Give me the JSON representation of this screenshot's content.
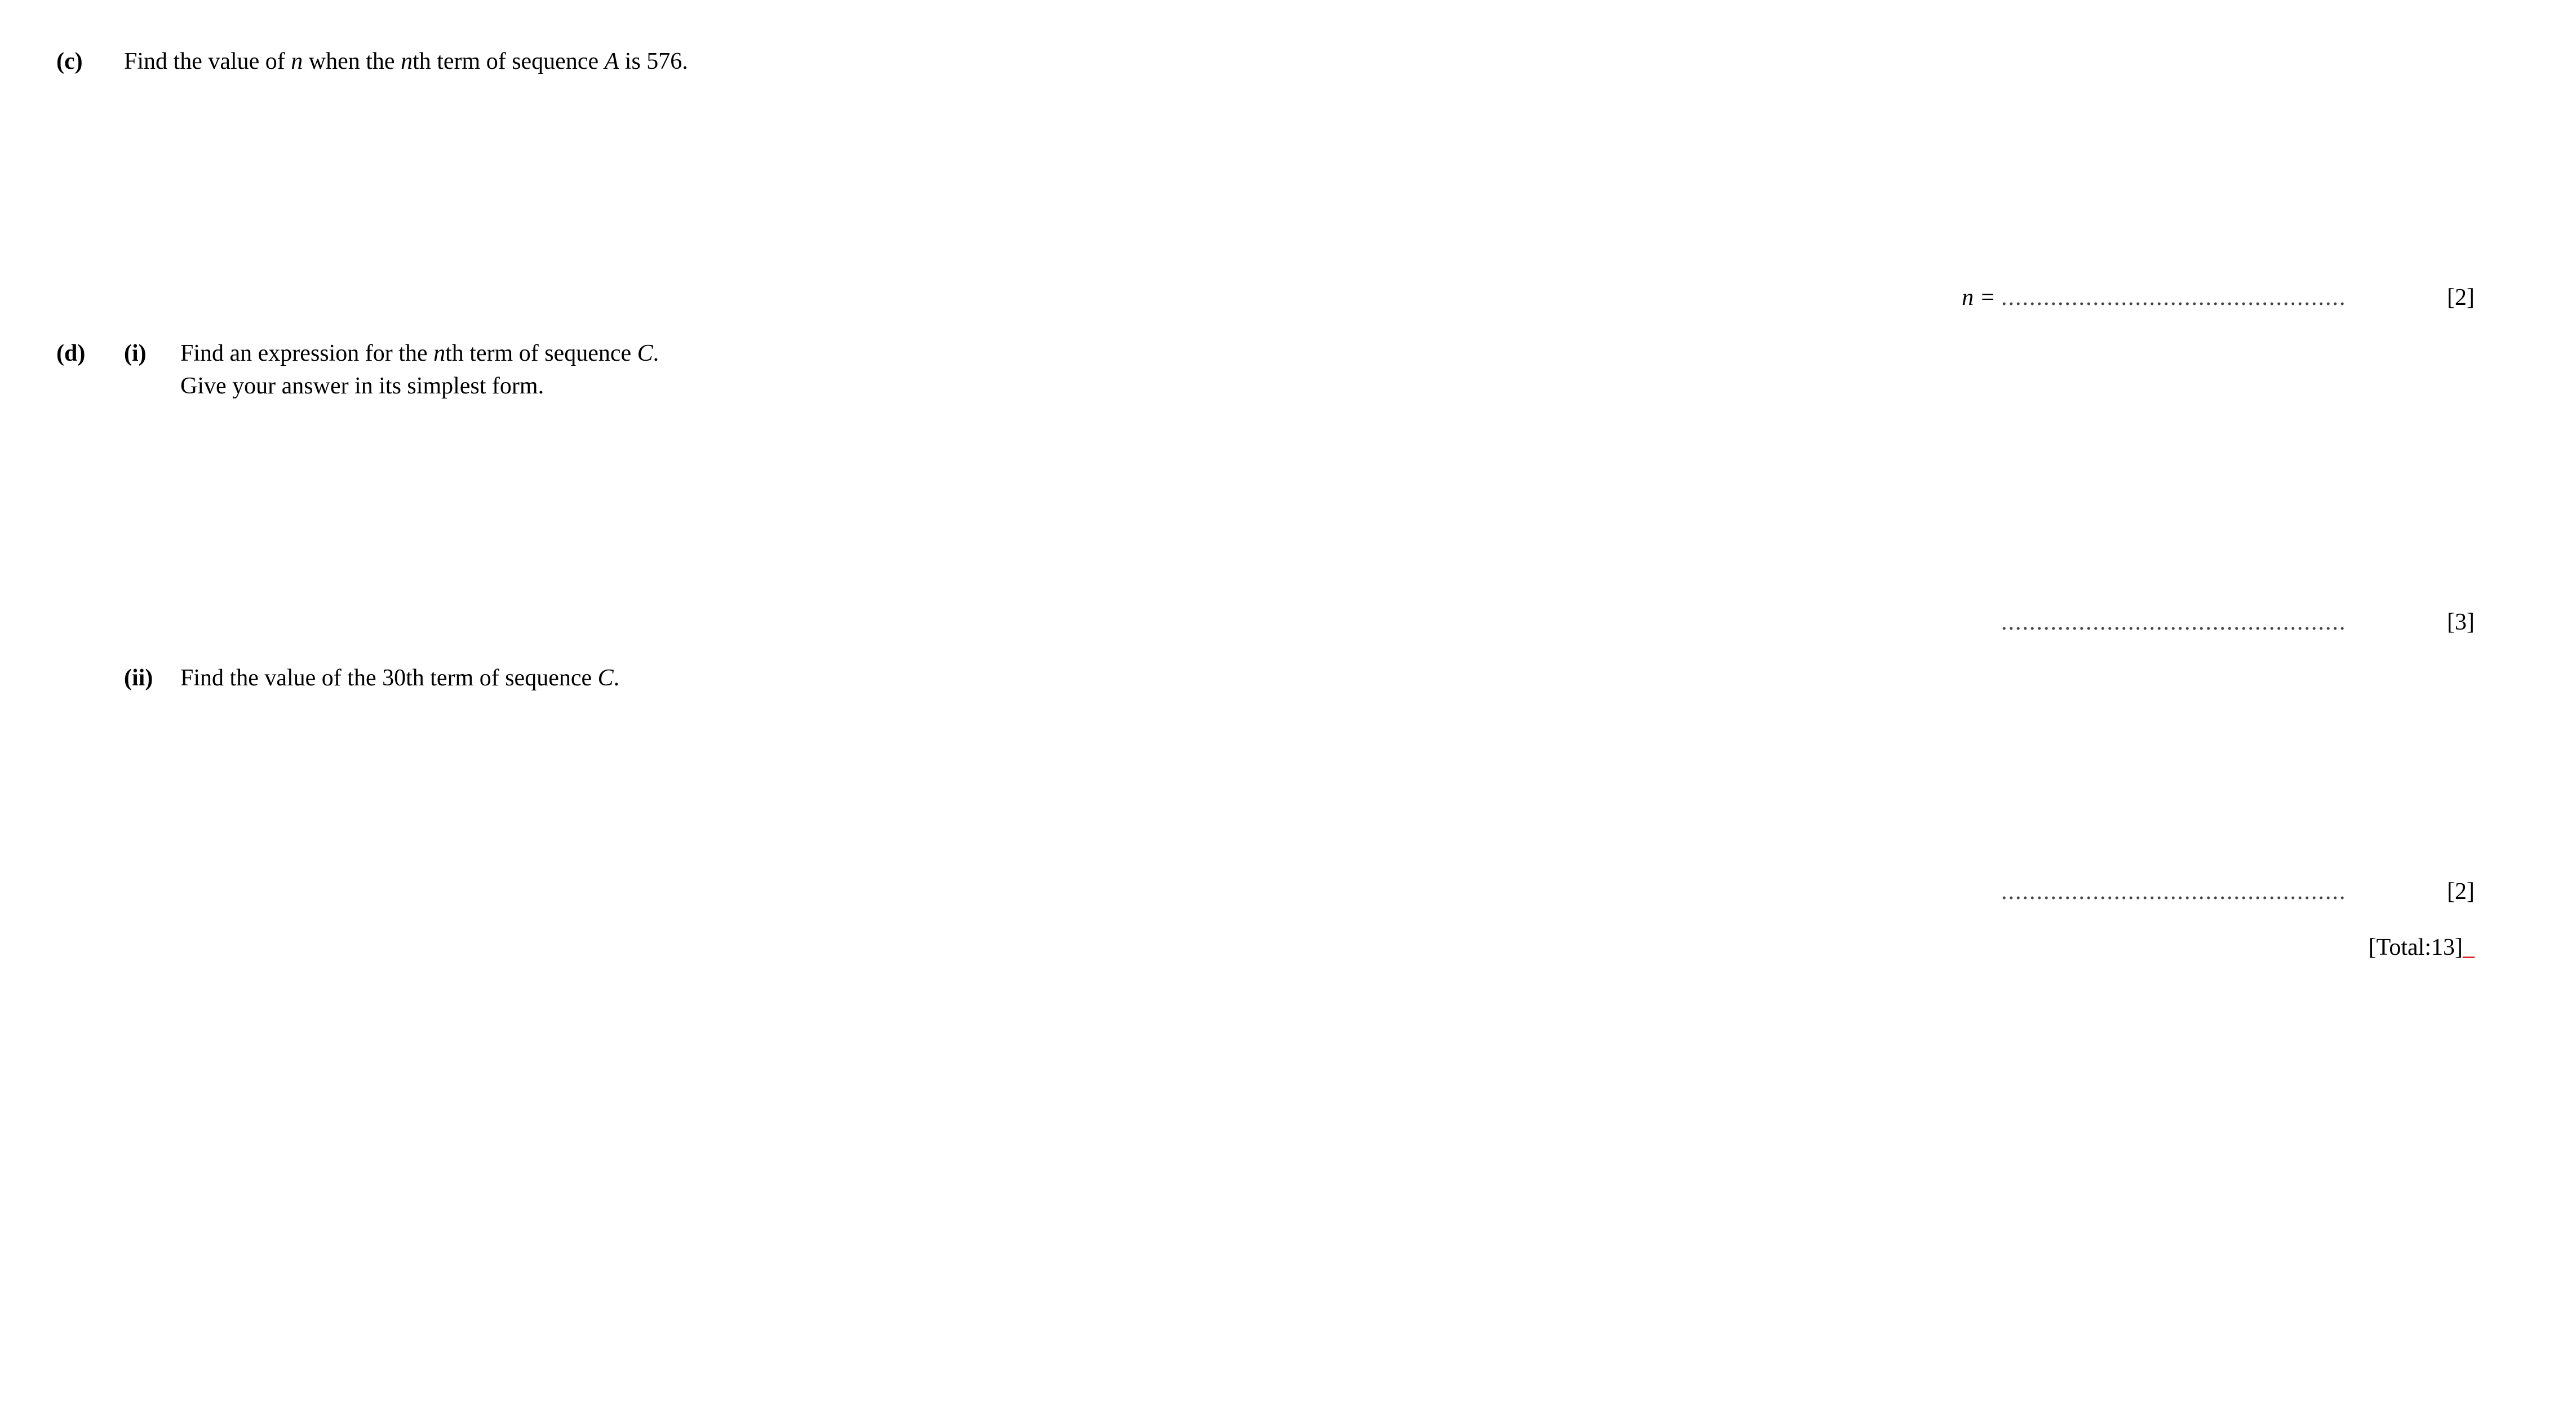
{
  "part_c": {
    "label": "(c)",
    "text_before_n1": "Find the value of ",
    "n1": "n",
    "text_mid1": " when the ",
    "n2": "n",
    "text_mid2": "th term of sequence ",
    "A": "A",
    "text_end": " is 576.",
    "answer_prefix": "n = ",
    "dots": ".................................................",
    "marks": "[2]"
  },
  "part_d": {
    "label": "(d)",
    "sub_i": {
      "label": "(i)",
      "text_before": "Find an expression for the ",
      "n": "n",
      "text_mid": "th term of sequence ",
      "C": "C",
      "text_after": ".",
      "line2": "Give your answer in its simplest form.",
      "dots": ".................................................",
      "marks": "[3]"
    },
    "sub_ii": {
      "label": "(ii)",
      "text_before": "Find the value of the 30th term of sequence ",
      "C": "C",
      "text_after": ".",
      "dots": ".................................................",
      "marks": "[2]"
    }
  },
  "total": {
    "prefix": "[Total: ",
    "value": "13",
    "suffix": "]"
  },
  "colors": {
    "background": "#ffffff",
    "text": "#000000",
    "red": "#cc0000"
  },
  "typography": {
    "font_family": "Times New Roman",
    "font_size_pt": 32
  }
}
